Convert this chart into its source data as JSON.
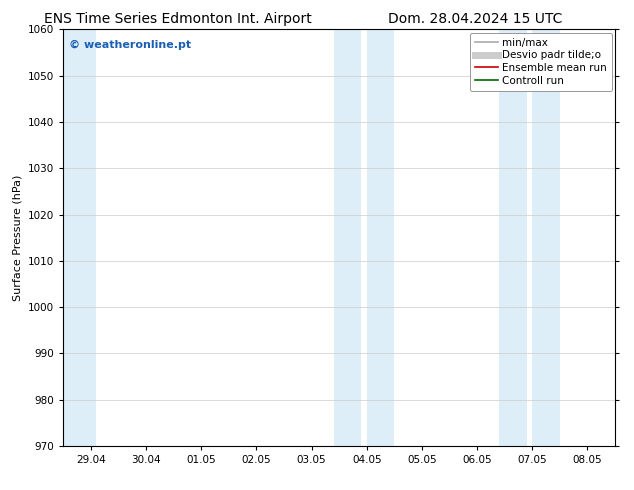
{
  "title_left": "ENS Time Series Edmonton Int. Airport",
  "title_right": "Dom. 28.04.2024 15 UTC",
  "ylabel": "Surface Pressure (hPa)",
  "xlabel": "",
  "watermark": "© weatheronline.pt",
  "watermark_color": "#1a5fb4",
  "ylim": [
    970,
    1060
  ],
  "yticks": [
    970,
    980,
    990,
    1000,
    1010,
    1020,
    1030,
    1040,
    1050,
    1060
  ],
  "xtick_labels": [
    "29.04",
    "30.04",
    "01.05",
    "02.05",
    "03.05",
    "04.05",
    "05.05",
    "06.05",
    "07.05",
    "08.05"
  ],
  "xtick_positions": [
    0,
    1,
    2,
    3,
    4,
    5,
    6,
    7,
    8,
    9
  ],
  "xlim": [
    -0.5,
    9.5
  ],
  "shaded_bands": [
    {
      "xmin": -0.5,
      "xmax": 0.1,
      "color": "#ddeef8"
    },
    {
      "xmin": 4.4,
      "xmax": 4.9,
      "color": "#ddeef8"
    },
    {
      "xmin": 5.0,
      "xmax": 5.5,
      "color": "#ddeef8"
    },
    {
      "xmin": 7.4,
      "xmax": 7.9,
      "color": "#ddeef8"
    },
    {
      "xmin": 8.0,
      "xmax": 8.5,
      "color": "#ddeef8"
    }
  ],
  "legend_items": [
    {
      "label": "min/max",
      "color": "#aaaaaa",
      "lw": 1.2
    },
    {
      "label": "Desvio padr tilde;o",
      "color": "#cccccc",
      "lw": 5
    },
    {
      "label": "Ensemble mean run",
      "color": "#cc0000",
      "lw": 1.2
    },
    {
      "label": "Controll run",
      "color": "#006600",
      "lw": 1.2
    }
  ],
  "bg_color": "#ffffff",
  "plot_bg_color": "#ffffff",
  "grid_color": "#cccccc",
  "tick_color": "#000000",
  "title_fontsize": 10,
  "axis_label_fontsize": 8,
  "tick_fontsize": 7.5,
  "legend_fontsize": 7.5
}
